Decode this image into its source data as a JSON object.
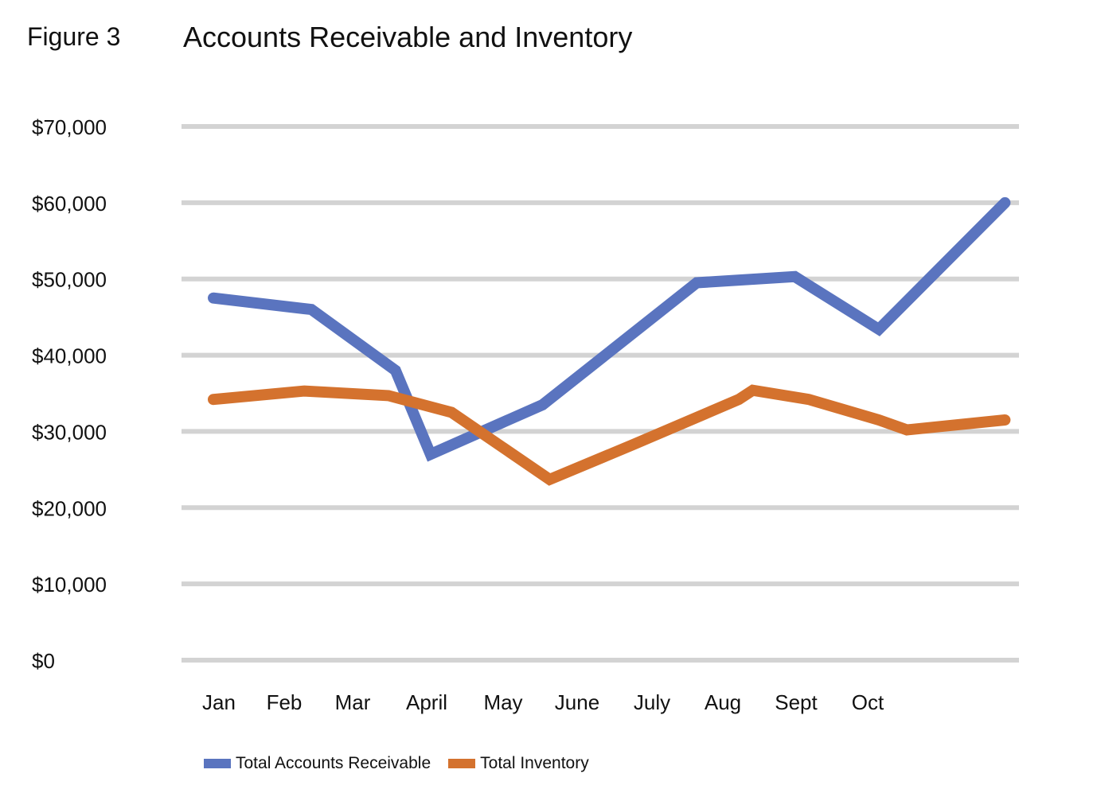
{
  "figure_label": "Figure 3",
  "chart_data": {
    "type": "line",
    "title": "Accounts Receivable and Inventory",
    "xlabel": "",
    "ylabel": "",
    "categories": [
      "Jan",
      "Feb",
      "Mar",
      "April",
      "May",
      "June",
      "July",
      "Aug",
      "Sept",
      "Oct"
    ],
    "x_tick_labels": [
      "Jan",
      "Feb",
      "Mar",
      "April",
      "May",
      "June",
      "July",
      "Aug",
      "Sept",
      "Oct"
    ],
    "y_tick_values": [
      0,
      10000,
      20000,
      30000,
      40000,
      50000,
      60000,
      70000
    ],
    "y_tick_labels": [
      "$0",
      "$10,000",
      "$20,000",
      "$30,000",
      "$40,000",
      "$50,000",
      "$60,000",
      "$70,000"
    ],
    "ylim": [
      0,
      70000
    ],
    "grid": true,
    "legend_position": "bottom-left",
    "series": [
      {
        "name": "Total Accounts Receivable",
        "color": "#5a74bf",
        "points": [
          {
            "x": 0.0,
            "y": 47500
          },
          {
            "x": 1.4,
            "y": 46000
          },
          {
            "x": 2.6,
            "y": 38000
          },
          {
            "x": 3.1,
            "y": 27000
          },
          {
            "x": 4.7,
            "y": 33500
          },
          {
            "x": 6.9,
            "y": 49500
          },
          {
            "x": 8.3,
            "y": 50300
          },
          {
            "x": 9.5,
            "y": 43400
          },
          {
            "x": 11.3,
            "y": 60000
          }
        ]
      },
      {
        "name": "Total Inventory",
        "color": "#d4722e",
        "points": [
          {
            "x": 0.0,
            "y": 34200
          },
          {
            "x": 1.3,
            "y": 35300
          },
          {
            "x": 2.5,
            "y": 34700
          },
          {
            "x": 3.4,
            "y": 32500
          },
          {
            "x": 4.8,
            "y": 23700
          },
          {
            "x": 6.0,
            "y": 28300
          },
          {
            "x": 7.5,
            "y": 34200
          },
          {
            "x": 7.7,
            "y": 35400
          },
          {
            "x": 8.5,
            "y": 34200
          },
          {
            "x": 9.5,
            "y": 31500
          },
          {
            "x": 9.9,
            "y": 30200
          },
          {
            "x": 11.3,
            "y": 31500
          }
        ]
      }
    ]
  }
}
